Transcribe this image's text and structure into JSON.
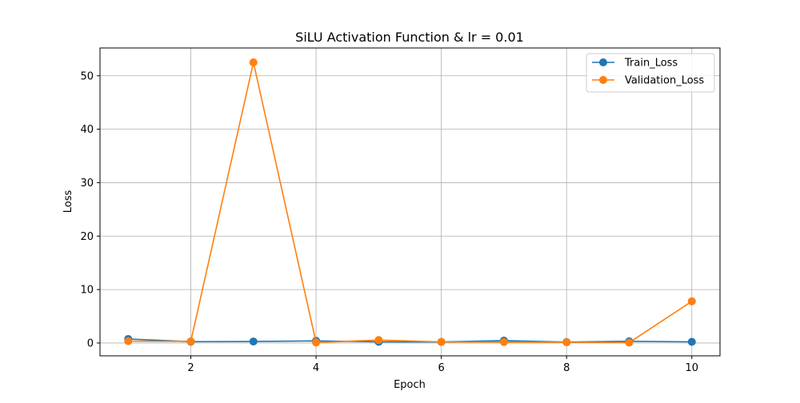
{
  "chart_data": {
    "type": "line",
    "title": "SiLU Activation Function & lr = 0.01",
    "xlabel": "Epoch",
    "ylabel": "Loss",
    "x": [
      1,
      2,
      3,
      4,
      5,
      6,
      7,
      8,
      9,
      10
    ],
    "xlim": [
      0.55,
      10.45
    ],
    "ylim": [
      -2.4,
      55.2
    ],
    "xticks": [
      2,
      4,
      6,
      8,
      10
    ],
    "yticks": [
      0,
      10,
      20,
      30,
      40,
      50
    ],
    "grid": true,
    "legend_position": "top-right",
    "series": [
      {
        "name": "Train_Loss",
        "color": "#1f77b4",
        "marker": "circle",
        "values": [
          0.75,
          0.25,
          0.28,
          0.4,
          0.22,
          0.2,
          0.45,
          0.18,
          0.32,
          0.22
        ]
      },
      {
        "name": "Validation_Loss",
        "color": "#ff7f0e",
        "marker": "circle",
        "values": [
          0.35,
          0.3,
          52.5,
          0.1,
          0.55,
          0.2,
          0.18,
          0.15,
          0.08,
          7.8
        ]
      }
    ]
  }
}
